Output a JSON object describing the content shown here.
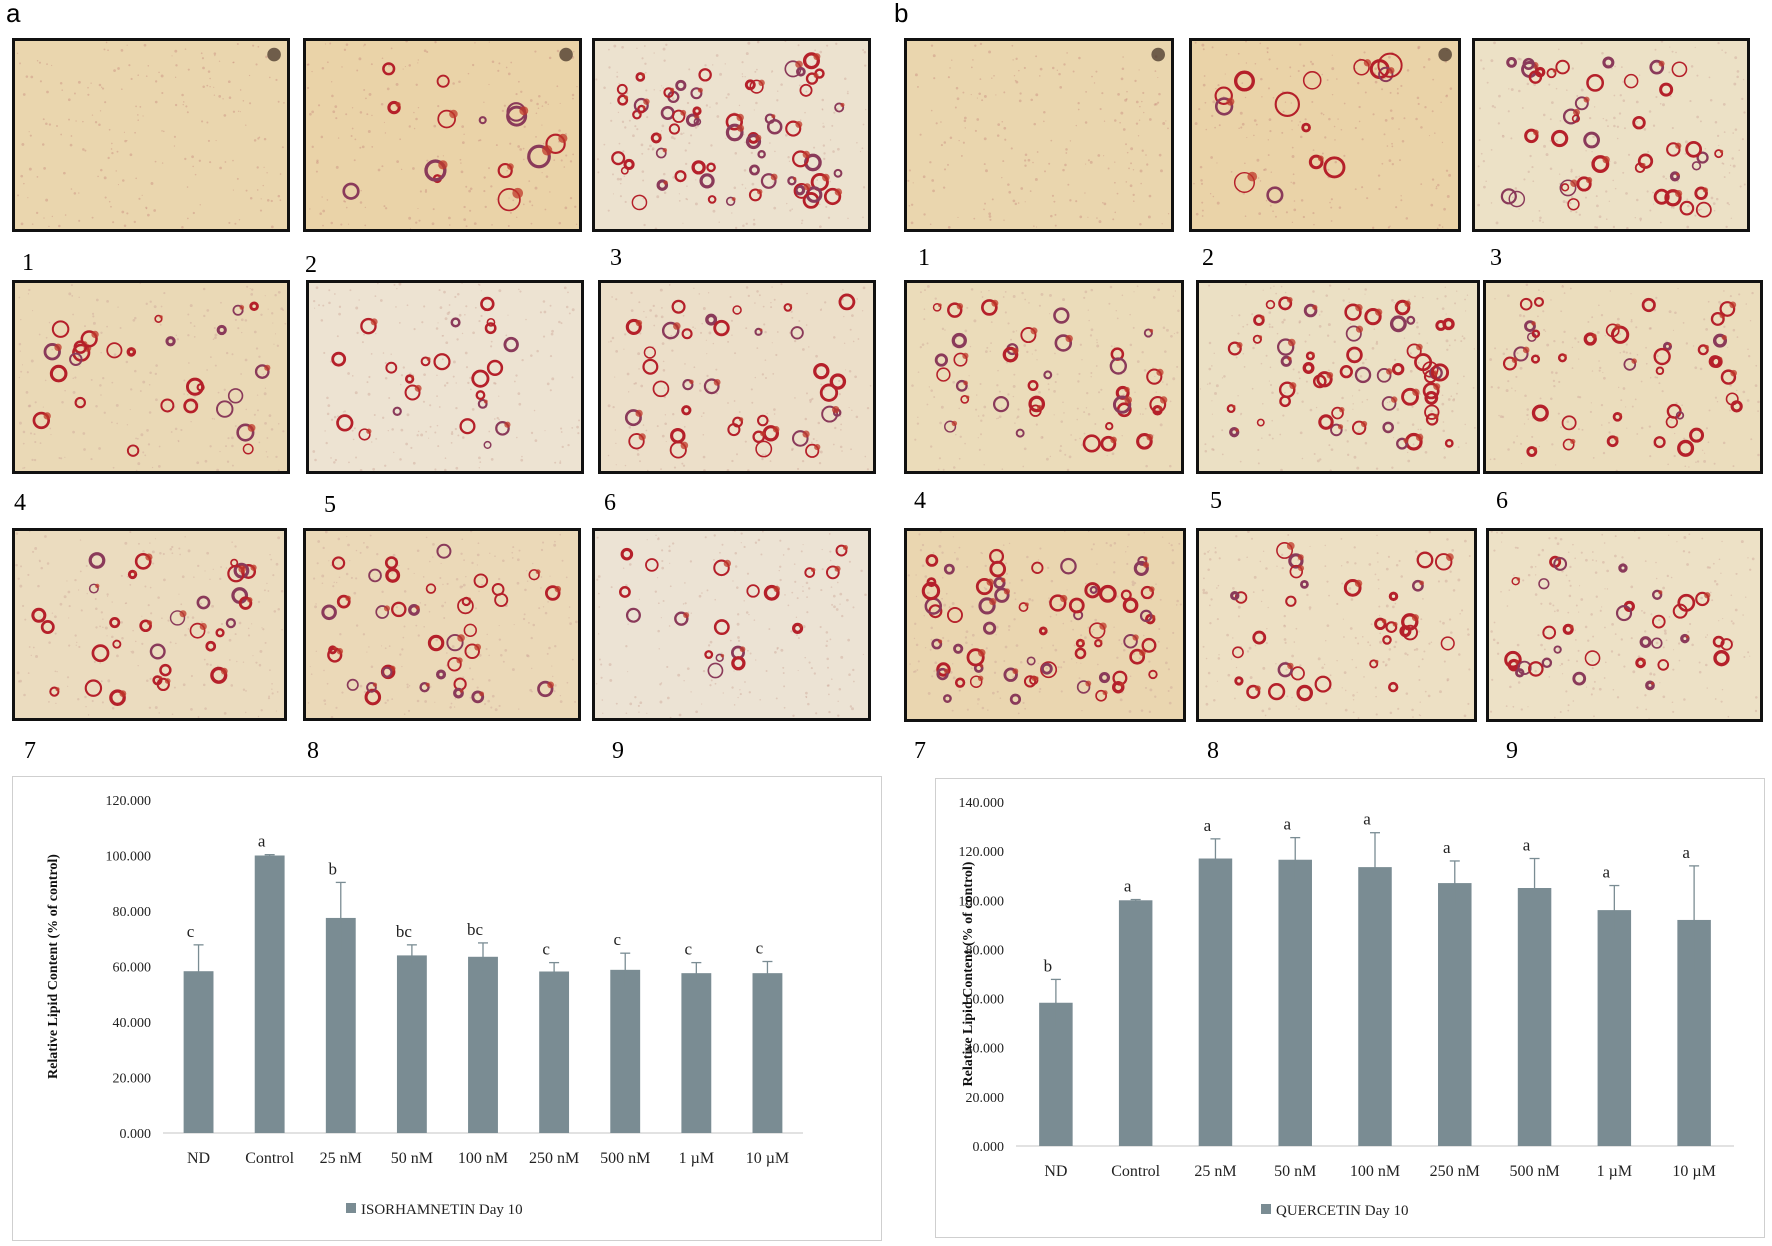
{
  "panels": [
    {
      "letter": "a",
      "image_labels": [
        "1",
        "2",
        "3",
        "4",
        "5",
        "6",
        "7",
        "8",
        "9"
      ]
    },
    {
      "letter": "b",
      "image_labels": [
        "1",
        "2",
        "3",
        "4",
        "5",
        "6",
        "7",
        "8",
        "9"
      ]
    }
  ],
  "colors": {
    "bar": "#7a8c93",
    "error_bar": "#7a8c93",
    "axis": "#d0d0d0",
    "micrograph_background": "#e9d3ad",
    "lipid_droplet": "#b5202a"
  },
  "chart_data": [
    {
      "type": "bar",
      "categories": [
        "ND",
        "Control",
        "25 nM",
        "50 nM",
        "100 nM",
        "250 nM",
        "500 nM",
        "1 µM",
        "10 µM"
      ],
      "series": [
        {
          "name": "ISORHAMNETIN Day 10",
          "values": [
            58.3,
            100.0,
            77.5,
            64.0,
            63.5,
            58.2,
            58.8,
            57.6,
            57.6
          ],
          "errors": [
            9.5,
            0.3,
            12.8,
            3.8,
            5.0,
            3.2,
            6.0,
            3.8,
            4.2
          ],
          "significance": [
            "c",
            "a",
            "b",
            "bc",
            "bc",
            "c",
            "c",
            "c",
            "c"
          ]
        }
      ],
      "ylabel": "Relative Lipid Content (% of control)",
      "yticks": [
        "0.000",
        "20.000",
        "40.000",
        "60.000",
        "80.000",
        "100.000",
        "120.000"
      ],
      "ylim": [
        0,
        120
      ],
      "legend_position": "bottom"
    },
    {
      "type": "bar",
      "categories": [
        "ND",
        "Control",
        "25 nM",
        "50 nM",
        "100 nM",
        "250 nM",
        "500 nM",
        "1 µM",
        "10 µM"
      ],
      "series": [
        {
          "name": "QUERCETIN  Day 10",
          "values": [
            58.3,
            100.0,
            117.0,
            116.5,
            113.5,
            107.0,
            105.0,
            96.0,
            92.0
          ],
          "errors": [
            9.5,
            0.3,
            8.0,
            9.0,
            14.0,
            9.0,
            12.0,
            10.0,
            22.0
          ],
          "significance": [
            "b",
            "a",
            "a",
            "a",
            "a",
            "a",
            "a",
            "a",
            "a"
          ]
        }
      ],
      "ylabel": "Relative Lipid Content (% of control)",
      "yticks": [
        "0.000",
        "20.000",
        "40.000",
        "60.000",
        "80.000",
        "100.000",
        "120.000",
        "140.000"
      ],
      "ylim": [
        0,
        140
      ],
      "legend_position": "bottom"
    }
  ]
}
